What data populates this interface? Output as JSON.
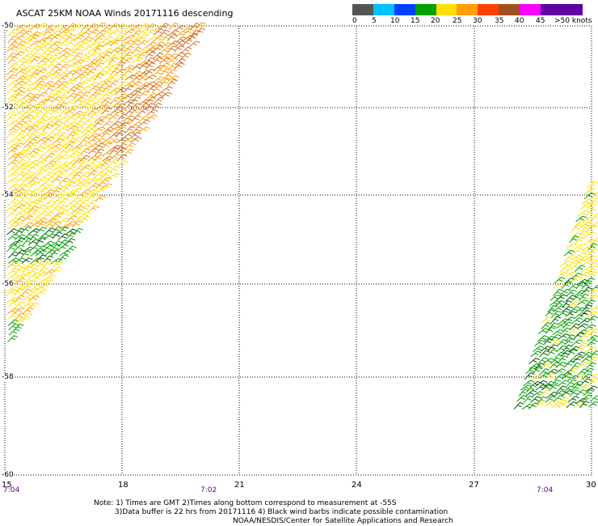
{
  "header": {
    "title": "ASCAT 25KM NOAA Winds 20171116 descending"
  },
  "legend": {
    "colors": [
      "#555555",
      "#00c0ff",
      "#0040ff",
      "#00a000",
      "#ffe000",
      "#ffa000",
      "#ff4000",
      "#a05020",
      "#ff00ff",
      "#6000a0"
    ],
    "labels": [
      "0",
      "5",
      "10",
      "15",
      "20",
      "25",
      "30",
      "35",
      "40",
      "45",
      ">50 knots"
    ]
  },
  "map": {
    "lat_labels": [
      "-50",
      "-52",
      "-54",
      "-56",
      "-58",
      "-60"
    ],
    "lon_labels": [
      "15",
      "18",
      "21",
      "24",
      "27",
      "30"
    ],
    "time_labels": [
      "7:04",
      "7:02",
      "7:04"
    ],
    "swaths": [
      {
        "name": "left-swath",
        "dominant_speeds_knots": [
          "20-25",
          "25-30",
          "15-20"
        ]
      },
      {
        "name": "right-swath",
        "dominant_speeds_knots": [
          "15-20",
          "20-25"
        ]
      }
    ]
  },
  "notes": {
    "line1": "Note: 1) Times are GMT 2)Times along bottom correspond to measurement at -55S",
    "line2": "3)Data buffer is 22 hrs from 20171116 4) Black wind barbs indicate possible contamination",
    "line3": "NOAA/NESDIS/Center for Satellite Applications and Research"
  }
}
